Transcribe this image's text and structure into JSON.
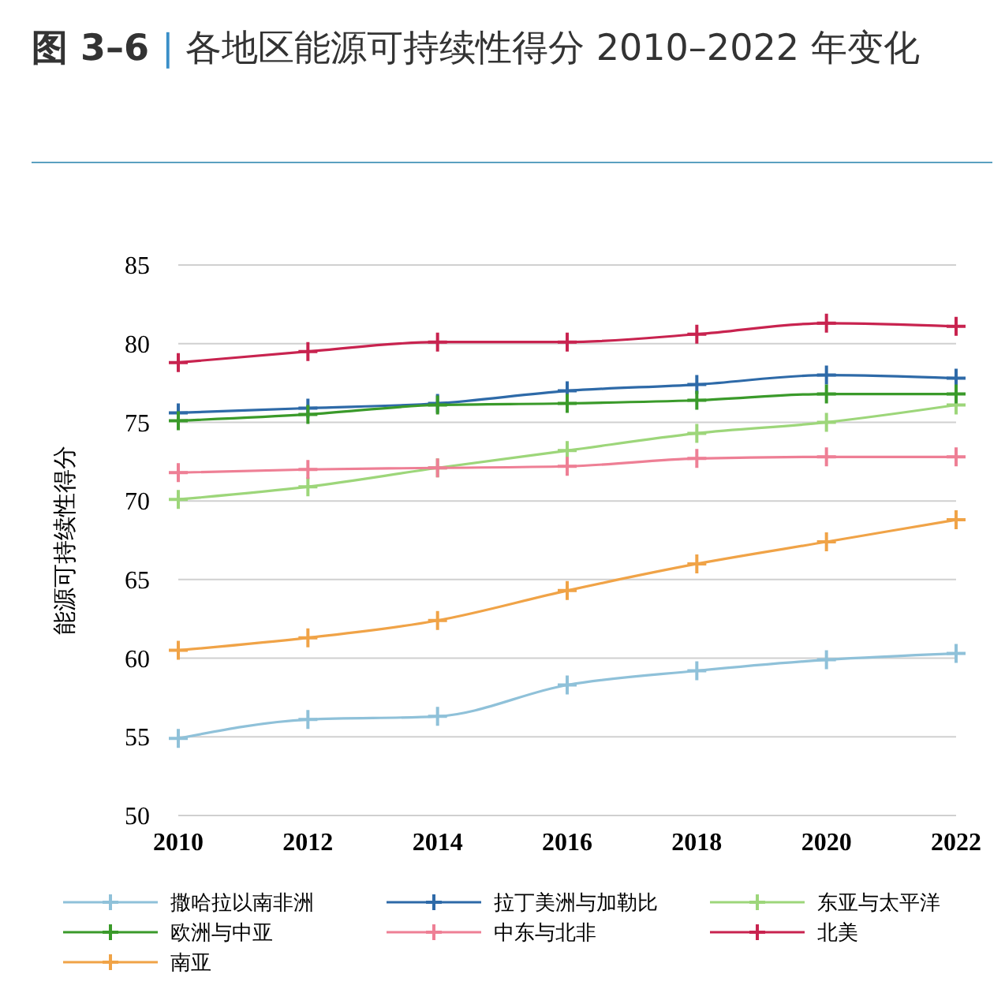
{
  "chart_data": {
    "type": "line",
    "title": "图 3–6 | 各地区能源可持续性得分 2010–2022 年变化",
    "ylabel": "能源可持续性得分",
    "x": [
      2010,
      2012,
      2014,
      2016,
      2018,
      2020,
      2022
    ],
    "xlim": [
      2010,
      2022
    ],
    "xticks": [
      2010,
      2012,
      2014,
      2016,
      2018,
      2020,
      2022
    ],
    "ylim": [
      50,
      85
    ],
    "yticks": [
      50,
      55,
      60,
      65,
      70,
      75,
      80,
      85
    ],
    "grid": "y",
    "legend": "bottom",
    "marker": "cross",
    "line_style": "solid",
    "series": [
      {
        "name": "撒哈拉以南非洲",
        "color": "#8fc1d9",
        "values": [
          54.9,
          56.1,
          56.3,
          58.3,
          59.2,
          59.9,
          60.3
        ]
      },
      {
        "name": "拉丁美洲与加勒比",
        "color": "#2e6aa8",
        "values": [
          75.6,
          75.9,
          76.2,
          77.0,
          77.4,
          78.0,
          77.8
        ]
      },
      {
        "name": "东亚与太平洋",
        "color": "#9dd67a",
        "values": [
          70.1,
          70.9,
          72.1,
          73.2,
          74.3,
          75.0,
          76.1
        ]
      },
      {
        "name": "欧洲与中亚",
        "color": "#3a9a2a",
        "values": [
          75.1,
          75.5,
          76.1,
          76.2,
          76.4,
          76.8,
          76.8
        ]
      },
      {
        "name": "中东与北非",
        "color": "#ee7f95",
        "values": [
          71.8,
          72.0,
          72.1,
          72.2,
          72.7,
          72.8,
          72.8
        ]
      },
      {
        "name": "北美",
        "color": "#c8234f",
        "values": [
          78.8,
          79.5,
          80.1,
          80.1,
          80.6,
          81.3,
          81.1
        ]
      },
      {
        "name": "南亚",
        "color": "#f0a347",
        "values": [
          60.5,
          61.3,
          62.4,
          64.3,
          66.0,
          67.4,
          68.8
        ]
      }
    ]
  }
}
